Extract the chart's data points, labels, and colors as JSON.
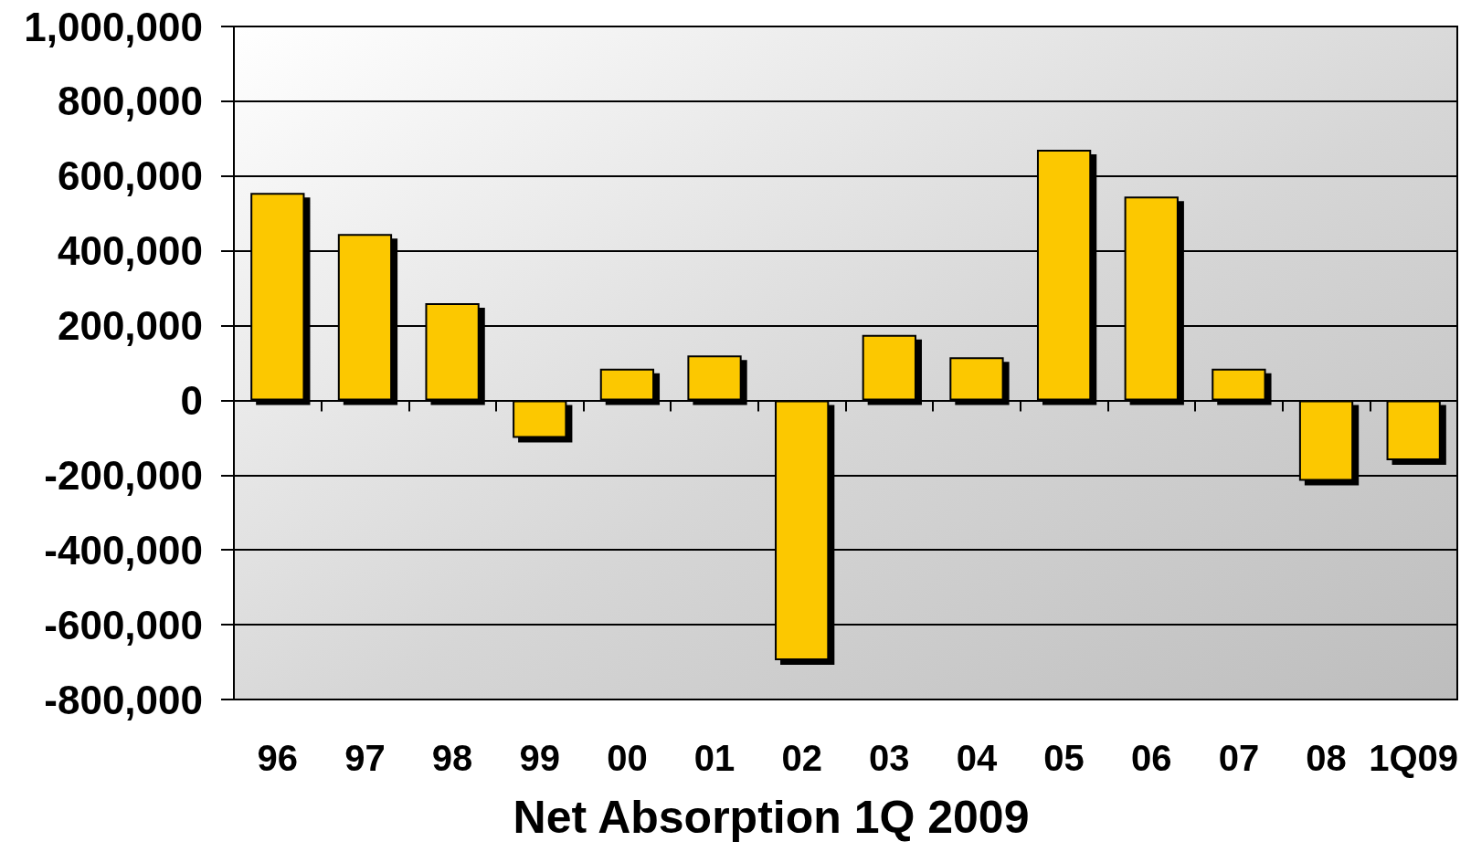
{
  "chart_data": {
    "type": "bar",
    "title": "Net Absorption 1Q 2009",
    "categories": [
      "96",
      "97",
      "98",
      "99",
      "00",
      "01",
      "02",
      "03",
      "04",
      "05",
      "06",
      "07",
      "08",
      "1Q09"
    ],
    "values": [
      555000,
      445000,
      260000,
      -100000,
      85000,
      120000,
      -695000,
      175000,
      115000,
      670000,
      545000,
      85000,
      -215000,
      -160000
    ],
    "color": "#fcc800",
    "ylim": [
      -800000,
      1000000
    ],
    "yticks": [
      {
        "value": -800000,
        "label": "-800,000"
      },
      {
        "value": -600000,
        "label": "-600,000"
      },
      {
        "value": -400000,
        "label": "-400,000"
      },
      {
        "value": -200000,
        "label": "-200,000"
      },
      0,
      {
        "value": 200000,
        "label": "200,000"
      },
      {
        "value": 400000,
        "label": "400,000"
      },
      {
        "value": 600000,
        "label": "600,000"
      },
      {
        "value": 800000,
        "label": "800,000"
      },
      {
        "value": 1000000,
        "label": "1,000,000"
      }
    ],
    "grid": "y"
  }
}
